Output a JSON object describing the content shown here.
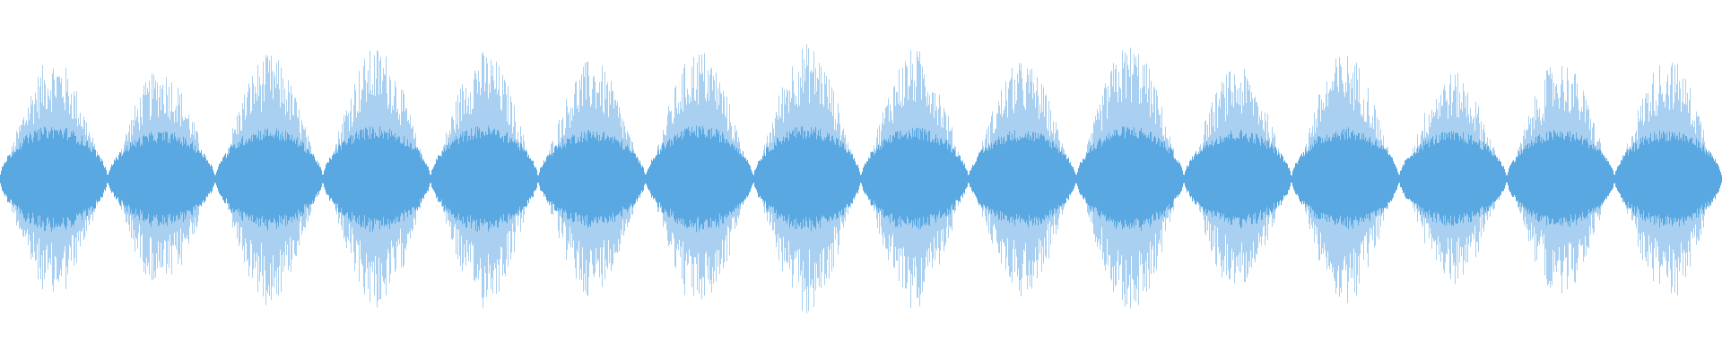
{
  "waveform": {
    "type": "audio-waveform",
    "peak_color": "#a9d0f0",
    "rms_color": "#5aa8e2",
    "background_color": "#ffffff",
    "envelope": {
      "bursts": [
        {
          "peak": 0.68,
          "rms": 0.3
        },
        {
          "peak": 0.62,
          "rms": 0.27
        },
        {
          "peak": 0.7,
          "rms": 0.29
        },
        {
          "peak": 0.74,
          "rms": 0.3
        },
        {
          "peak": 0.72,
          "rms": 0.3
        },
        {
          "peak": 0.67,
          "rms": 0.28
        },
        {
          "peak": 0.73,
          "rms": 0.3
        },
        {
          "peak": 0.76,
          "rms": 0.3
        },
        {
          "peak": 0.73,
          "rms": 0.29
        },
        {
          "peak": 0.66,
          "rms": 0.28
        },
        {
          "peak": 0.76,
          "rms": 0.3
        },
        {
          "peak": 0.63,
          "rms": 0.28
        },
        {
          "peak": 0.71,
          "rms": 0.29
        },
        {
          "peak": 0.6,
          "rms": 0.27
        },
        {
          "peak": 0.67,
          "rms": 0.28
        },
        {
          "peak": 0.68,
          "rms": 0.28
        }
      ]
    }
  }
}
